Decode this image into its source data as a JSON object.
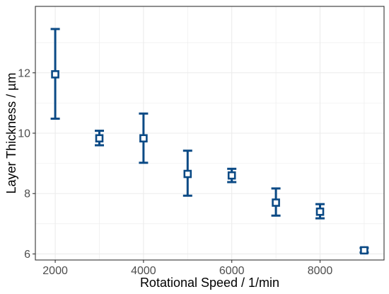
{
  "chart_data": {
    "type": "scatter",
    "xlabel": "Rotational Speed / 1/min",
    "ylabel": "Layer Thickness / µm",
    "x": [
      2000,
      3000,
      4000,
      5000,
      6000,
      7000,
      8000,
      9000
    ],
    "y": [
      11.95,
      9.83,
      9.83,
      8.65,
      8.6,
      7.7,
      7.4,
      6.12
    ],
    "y_low": [
      10.48,
      9.6,
      9.02,
      7.93,
      8.38,
      7.27,
      7.18,
      6.05
    ],
    "y_high": [
      13.45,
      10.08,
      10.65,
      9.42,
      8.82,
      8.17,
      7.65,
      6.2
    ],
    "xlim": [
      1550,
      9450
    ],
    "ylim": [
      5.8,
      14.2
    ],
    "x_ticks": [
      2000,
      4000,
      6000,
      8000
    ],
    "y_ticks": [
      6,
      8,
      10,
      12
    ],
    "x_minor": [
      3000,
      5000,
      7000,
      9000
    ],
    "y_minor": [
      7,
      9,
      11,
      13
    ],
    "grid": true,
    "marker": "open-square",
    "color": "#0b4a85",
    "grid_color": "#ebebeb"
  }
}
